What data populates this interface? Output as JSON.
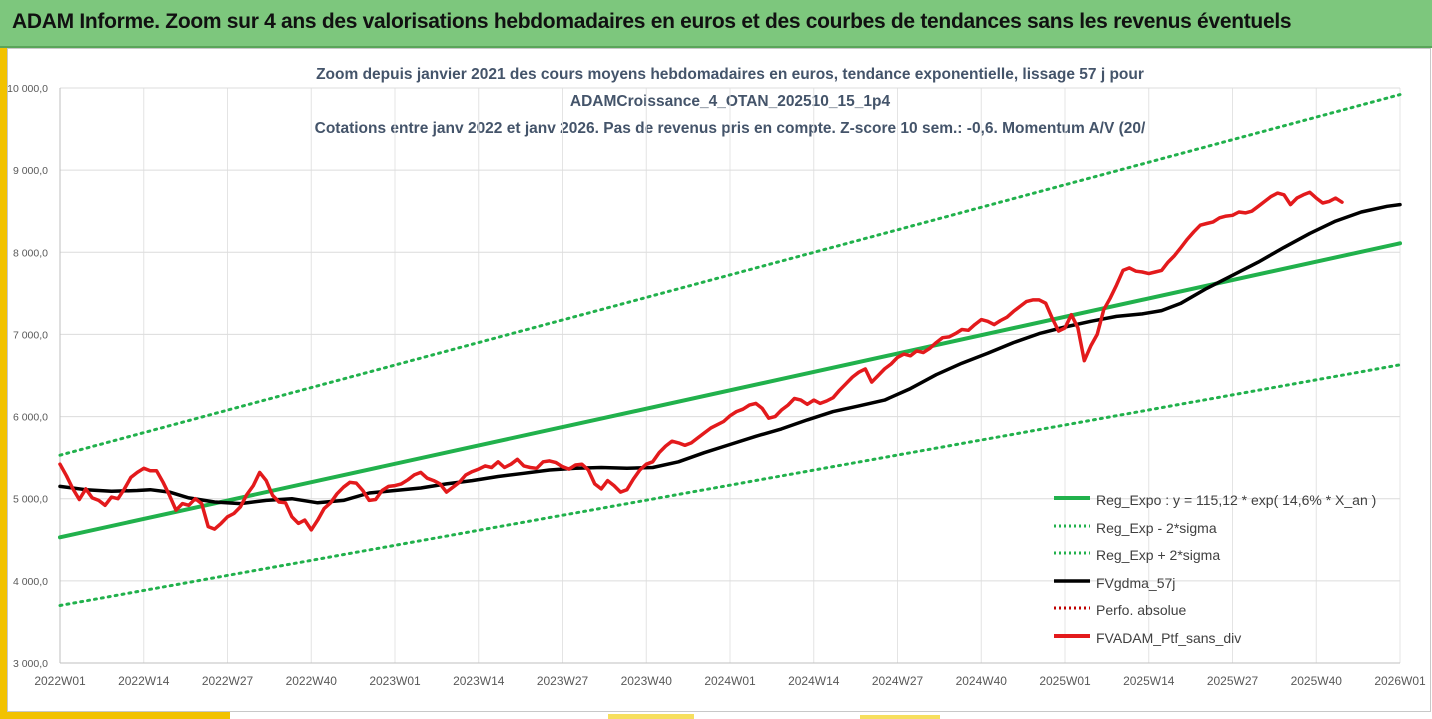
{
  "header": {
    "title": "ADAM Informe. Zoom sur 4 ans des valorisations hebdomadaires en euros et des courbes de tendances sans les revenus éventuels"
  },
  "colors": {
    "header_bg": "#7dc77d",
    "trend": "#21b14c",
    "sigma": "#21b14c",
    "smooth": "#000000",
    "perf": "#c00000",
    "portfolio": "#e31a1c"
  },
  "chart_data": {
    "type": "line",
    "title_lines": [
      "Zoom depuis janvier 2021 des cours moyens hebdomadaires  en euros, tendance exponentielle, lissage 57 j pour",
      "ADAMCroissance_4_OTAN_202510_15_1p4",
      "Cotations entre janv 2022 et janv 2026. Pas de revenus pris en compte. Z-score 10 sem.: -0,6. Momentum A/V (20/"
    ],
    "xlim": [
      0,
      208
    ],
    "ylim": [
      3000,
      10000
    ],
    "y_ticks": [
      {
        "value": 3000,
        "label": "3 000,0"
      },
      {
        "value": 4000,
        "label": "4 000,0"
      },
      {
        "value": 5000,
        "label": "5 000,0"
      },
      {
        "value": 6000,
        "label": "6 000,0"
      },
      {
        "value": 7000,
        "label": "7 000,0"
      },
      {
        "value": 8000,
        "label": "8 000,0"
      },
      {
        "value": 9000,
        "label": "9 000,0"
      },
      {
        "value": 10000,
        "label": "10 000,0"
      }
    ],
    "x_ticks": [
      {
        "week": 0,
        "label": "2022W01"
      },
      {
        "week": 13,
        "label": "2022W14"
      },
      {
        "week": 26,
        "label": "2022W27"
      },
      {
        "week": 39,
        "label": "2022W40"
      },
      {
        "week": 52,
        "label": "2023W01"
      },
      {
        "week": 65,
        "label": "2023W14"
      },
      {
        "week": 78,
        "label": "2023W27"
      },
      {
        "week": 91,
        "label": "2023W40"
      },
      {
        "week": 104,
        "label": "2024W01"
      },
      {
        "week": 117,
        "label": "2024W14"
      },
      {
        "week": 130,
        "label": "2024W27"
      },
      {
        "week": 143,
        "label": "2024W40"
      },
      {
        "week": 156,
        "label": "2025W01"
      },
      {
        "week": 169,
        "label": "2025W14"
      },
      {
        "week": 182,
        "label": "2025W27"
      },
      {
        "week": 195,
        "label": "2025W40"
      },
      {
        "week": 208,
        "label": "2026W01"
      }
    ],
    "legend_position": "bottom-right",
    "series": [
      {
        "key": "trend",
        "name": "Reg_Expo : y = 115,12 * exp( 14,6% *  X_an )",
        "style": "solid-thick",
        "color": "#21b14c",
        "points": [
          [
            0,
            4530
          ],
          [
            208,
            8110
          ]
        ]
      },
      {
        "key": "lower",
        "name": "Reg_Exp - 2*sigma",
        "style": "dotted",
        "color": "#21b14c",
        "points": [
          [
            0,
            3700
          ],
          [
            208,
            6630
          ]
        ]
      },
      {
        "key": "upper",
        "name": "Reg_Exp + 2*sigma",
        "style": "dotted",
        "color": "#21b14c",
        "points": [
          [
            0,
            5530
          ],
          [
            208,
            9920
          ]
        ]
      },
      {
        "key": "smooth",
        "name": "FVgdma_57j",
        "style": "solid",
        "color": "#000000",
        "points": [
          [
            0,
            5150
          ],
          [
            4,
            5110
          ],
          [
            8,
            5090
          ],
          [
            12,
            5100
          ],
          [
            14,
            5110
          ],
          [
            17,
            5080
          ],
          [
            20,
            5010
          ],
          [
            24,
            4960
          ],
          [
            28,
            4940
          ],
          [
            32,
            4980
          ],
          [
            36,
            5000
          ],
          [
            40,
            4950
          ],
          [
            44,
            4980
          ],
          [
            48,
            5070
          ],
          [
            52,
            5100
          ],
          [
            56,
            5130
          ],
          [
            60,
            5180
          ],
          [
            64,
            5220
          ],
          [
            68,
            5270
          ],
          [
            72,
            5310
          ],
          [
            76,
            5350
          ],
          [
            80,
            5370
          ],
          [
            84,
            5380
          ],
          [
            88,
            5370
          ],
          [
            92,
            5380
          ],
          [
            96,
            5450
          ],
          [
            100,
            5560
          ],
          [
            104,
            5660
          ],
          [
            108,
            5760
          ],
          [
            112,
            5850
          ],
          [
            116,
            5960
          ],
          [
            120,
            6060
          ],
          [
            124,
            6130
          ],
          [
            128,
            6200
          ],
          [
            132,
            6340
          ],
          [
            136,
            6510
          ],
          [
            140,
            6650
          ],
          [
            144,
            6770
          ],
          [
            148,
            6900
          ],
          [
            152,
            7010
          ],
          [
            156,
            7090
          ],
          [
            160,
            7160
          ],
          [
            164,
            7220
          ],
          [
            168,
            7250
          ],
          [
            171,
            7290
          ],
          [
            174,
            7380
          ],
          [
            178,
            7560
          ],
          [
            182,
            7720
          ],
          [
            186,
            7880
          ],
          [
            190,
            8060
          ],
          [
            194,
            8230
          ],
          [
            198,
            8380
          ],
          [
            202,
            8490
          ],
          [
            206,
            8560
          ],
          [
            208,
            8580
          ]
        ]
      },
      {
        "key": "perf",
        "name": "Perfo. absolue",
        "style": "dotted",
        "color": "#c00000",
        "points": []
      },
      {
        "key": "portfolio",
        "name": "FVADAM_Ptf_sans_div",
        "style": "solid-thick",
        "color": "#e31a1c",
        "points": [
          [
            0,
            5420
          ],
          [
            1,
            5280
          ],
          [
            2,
            5120
          ],
          [
            3,
            4990
          ],
          [
            4,
            5120
          ],
          [
            5,
            5010
          ],
          [
            6,
            4980
          ],
          [
            7,
            4920
          ],
          [
            8,
            5020
          ],
          [
            9,
            5000
          ],
          [
            10,
            5120
          ],
          [
            11,
            5260
          ],
          [
            12,
            5320
          ],
          [
            13,
            5370
          ],
          [
            14,
            5340
          ],
          [
            15,
            5340
          ],
          [
            16,
            5200
          ],
          [
            17,
            5040
          ],
          [
            18,
            4860
          ],
          [
            19,
            4940
          ],
          [
            20,
            4920
          ],
          [
            21,
            5000
          ],
          [
            22,
            4940
          ],
          [
            23,
            4660
          ],
          [
            24,
            4630
          ],
          [
            25,
            4700
          ],
          [
            26,
            4780
          ],
          [
            27,
            4820
          ],
          [
            28,
            4900
          ],
          [
            29,
            5050
          ],
          [
            30,
            5160
          ],
          [
            31,
            5320
          ],
          [
            32,
            5220
          ],
          [
            33,
            5040
          ],
          [
            34,
            4960
          ],
          [
            35,
            4950
          ],
          [
            36,
            4780
          ],
          [
            37,
            4700
          ],
          [
            38,
            4740
          ],
          [
            39,
            4620
          ],
          [
            40,
            4740
          ],
          [
            41,
            4880
          ],
          [
            42,
            4950
          ],
          [
            43,
            5060
          ],
          [
            44,
            5140
          ],
          [
            45,
            5200
          ],
          [
            46,
            5190
          ],
          [
            47,
            5100
          ],
          [
            48,
            4980
          ],
          [
            49,
            4990
          ],
          [
            50,
            5100
          ],
          [
            51,
            5150
          ],
          [
            52,
            5160
          ],
          [
            53,
            5180
          ],
          [
            54,
            5230
          ],
          [
            55,
            5290
          ],
          [
            56,
            5320
          ],
          [
            57,
            5250
          ],
          [
            58,
            5220
          ],
          [
            59,
            5180
          ],
          [
            60,
            5080
          ],
          [
            61,
            5140
          ],
          [
            62,
            5200
          ],
          [
            63,
            5290
          ],
          [
            64,
            5330
          ],
          [
            65,
            5360
          ],
          [
            66,
            5400
          ],
          [
            67,
            5380
          ],
          [
            68,
            5450
          ],
          [
            69,
            5380
          ],
          [
            70,
            5420
          ],
          [
            71,
            5480
          ],
          [
            72,
            5400
          ],
          [
            73,
            5380
          ],
          [
            74,
            5370
          ],
          [
            75,
            5450
          ],
          [
            76,
            5460
          ],
          [
            77,
            5440
          ],
          [
            78,
            5390
          ],
          [
            79,
            5360
          ],
          [
            80,
            5410
          ],
          [
            81,
            5420
          ],
          [
            82,
            5350
          ],
          [
            83,
            5180
          ],
          [
            84,
            5120
          ],
          [
            85,
            5220
          ],
          [
            86,
            5160
          ],
          [
            87,
            5080
          ],
          [
            88,
            5110
          ],
          [
            89,
            5240
          ],
          [
            90,
            5350
          ],
          [
            91,
            5420
          ],
          [
            92,
            5450
          ],
          [
            93,
            5560
          ],
          [
            94,
            5640
          ],
          [
            95,
            5700
          ],
          [
            96,
            5680
          ],
          [
            97,
            5650
          ],
          [
            98,
            5680
          ],
          [
            99,
            5740
          ],
          [
            100,
            5800
          ],
          [
            101,
            5860
          ],
          [
            102,
            5900
          ],
          [
            103,
            5940
          ],
          [
            104,
            6010
          ],
          [
            105,
            6060
          ],
          [
            106,
            6090
          ],
          [
            107,
            6140
          ],
          [
            108,
            6160
          ],
          [
            109,
            6100
          ],
          [
            110,
            5980
          ],
          [
            111,
            6000
          ],
          [
            112,
            6080
          ],
          [
            113,
            6140
          ],
          [
            114,
            6220
          ],
          [
            115,
            6200
          ],
          [
            116,
            6150
          ],
          [
            117,
            6200
          ],
          [
            118,
            6160
          ],
          [
            119,
            6190
          ],
          [
            120,
            6230
          ],
          [
            121,
            6320
          ],
          [
            122,
            6400
          ],
          [
            123,
            6480
          ],
          [
            124,
            6540
          ],
          [
            125,
            6580
          ],
          [
            126,
            6420
          ],
          [
            127,
            6500
          ],
          [
            128,
            6580
          ],
          [
            129,
            6640
          ],
          [
            130,
            6720
          ],
          [
            131,
            6760
          ],
          [
            132,
            6740
          ],
          [
            133,
            6800
          ],
          [
            134,
            6780
          ],
          [
            135,
            6830
          ],
          [
            136,
            6900
          ],
          [
            137,
            6960
          ],
          [
            138,
            6970
          ],
          [
            139,
            7010
          ],
          [
            140,
            7060
          ],
          [
            141,
            7050
          ],
          [
            142,
            7120
          ],
          [
            143,
            7180
          ],
          [
            144,
            7160
          ],
          [
            145,
            7120
          ],
          [
            146,
            7170
          ],
          [
            147,
            7210
          ],
          [
            148,
            7280
          ],
          [
            149,
            7340
          ],
          [
            150,
            7400
          ],
          [
            151,
            7420
          ],
          [
            152,
            7420
          ],
          [
            153,
            7380
          ],
          [
            154,
            7200
          ],
          [
            155,
            7040
          ],
          [
            156,
            7080
          ],
          [
            157,
            7240
          ],
          [
            158,
            7080
          ],
          [
            159,
            6680
          ],
          [
            160,
            6860
          ],
          [
            161,
            7000
          ],
          [
            162,
            7300
          ],
          [
            163,
            7440
          ],
          [
            164,
            7600
          ],
          [
            165,
            7780
          ],
          [
            166,
            7810
          ],
          [
            167,
            7770
          ],
          [
            168,
            7760
          ],
          [
            169,
            7740
          ],
          [
            170,
            7760
          ],
          [
            171,
            7780
          ],
          [
            172,
            7880
          ],
          [
            173,
            7960
          ],
          [
            174,
            8060
          ],
          [
            175,
            8160
          ],
          [
            176,
            8250
          ],
          [
            177,
            8330
          ],
          [
            178,
            8350
          ],
          [
            179,
            8370
          ],
          [
            180,
            8420
          ],
          [
            181,
            8440
          ],
          [
            182,
            8450
          ],
          [
            183,
            8490
          ],
          [
            184,
            8480
          ],
          [
            185,
            8500
          ],
          [
            186,
            8560
          ],
          [
            187,
            8620
          ],
          [
            188,
            8680
          ],
          [
            189,
            8720
          ],
          [
            190,
            8700
          ],
          [
            191,
            8580
          ],
          [
            192,
            8660
          ],
          [
            193,
            8700
          ],
          [
            194,
            8730
          ],
          [
            195,
            8660
          ],
          [
            196,
            8600
          ],
          [
            197,
            8620
          ],
          [
            198,
            8660
          ],
          [
            199,
            8610
          ]
        ]
      }
    ]
  }
}
